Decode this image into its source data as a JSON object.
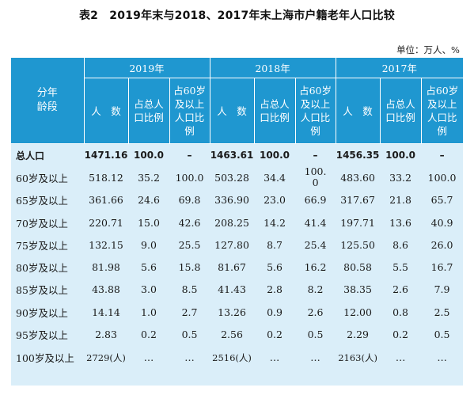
{
  "title": "表2　2019年末与2018、2017年末上海市户籍老年人口比较",
  "unit_label": "单位：万人、%",
  "stub_header": [
    "分年",
    "龄段"
  ],
  "years": [
    "2019年",
    "2018年",
    "2017年"
  ],
  "sub_headers": [
    {
      "lines": [
        "人　数"
      ]
    },
    {
      "lines": [
        "占总人",
        "口比例"
      ]
    },
    {
      "lines": [
        "占60岁",
        "及以上",
        "人口比",
        "例"
      ]
    }
  ],
  "rows": [
    {
      "label": "总人口",
      "cells": [
        "1471.16",
        "100.0",
        "–",
        "1463.61",
        "100.0",
        "–",
        "1456.35",
        "100.0",
        "–"
      ]
    },
    {
      "label": "60岁及以上",
      "cells": [
        "518.12",
        "35.2",
        "100.0",
        "503.28",
        "34.4",
        "100.0",
        "483.60",
        "33.2",
        "100.0"
      ]
    },
    {
      "label": "65岁及以上",
      "cells": [
        "361.66",
        "24.6",
        "69.8",
        "336.90",
        "23.0",
        "66.9",
        "317.67",
        "21.8",
        "65.7"
      ]
    },
    {
      "label": "70岁及以上",
      "cells": [
        "220.71",
        "15.0",
        "42.6",
        "208.25",
        "14.2",
        "41.4",
        "197.71",
        "13.6",
        "40.9"
      ]
    },
    {
      "label": "75岁及以上",
      "cells": [
        "132.15",
        "9.0",
        "25.5",
        "127.80",
        "8.7",
        "25.4",
        "125.50",
        "8.6",
        "26.0"
      ]
    },
    {
      "label": "80岁及以上",
      "cells": [
        "81.98",
        "5.6",
        "15.8",
        "81.67",
        "5.6",
        "16.2",
        "80.58",
        "5.5",
        "16.7"
      ]
    },
    {
      "label": "85岁及以上",
      "cells": [
        "43.88",
        "3.0",
        "8.5",
        "41.43",
        "2.8",
        "8.2",
        "38.35",
        "2.6",
        "7.9"
      ]
    },
    {
      "label": "90岁及以上",
      "cells": [
        "14.14",
        "1.0",
        "2.7",
        "13.26",
        "0.9",
        "2.6",
        "12.00",
        "0.8",
        "2.5"
      ]
    },
    {
      "label": "95岁及以上",
      "cells": [
        "2.83",
        "0.2",
        "0.5",
        "2.56",
        "0.2",
        "0.5",
        "2.29",
        "0.2",
        "0.5"
      ]
    },
    {
      "label": "100岁及以上",
      "cells": [
        "2729(人)",
        "…",
        "…",
        "2516(人)",
        "…",
        "…",
        "2163(人)",
        "…",
        "…"
      ]
    }
  ],
  "colors": {
    "header_blue": "#1f97d0",
    "body_tint": "#daeef9"
  }
}
